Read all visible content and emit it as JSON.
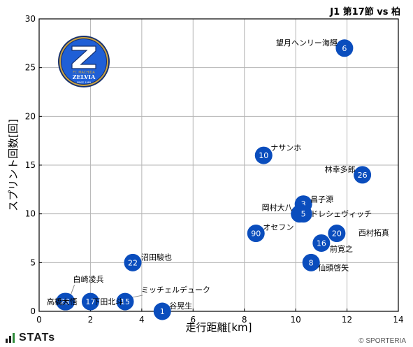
{
  "header": {
    "title": "J1 第17節 vs 柏"
  },
  "footer": {
    "brand": "STATs",
    "credit": "© SPORTERIA"
  },
  "logo": {
    "top_text": "FC MACHIDA",
    "name": "ZELVIA",
    "since": "SINCE 1989"
  },
  "colors": {
    "point": "#0a4dbd",
    "grid": "#b5b5b5",
    "logo_navy": "#16306e",
    "logo_blue": "#1f5fd6",
    "logo_gold": "#c9a243"
  },
  "chart_data": {
    "type": "scatter",
    "xlabel": "走行距離[km]",
    "ylabel": "スプリント回数[回]",
    "xlim": [
      0,
      14
    ],
    "ylim": [
      0,
      30
    ],
    "xticks": [
      0,
      2,
      4,
      6,
      8,
      10,
      12,
      14
    ],
    "yticks": [
      0,
      5,
      10,
      15,
      20,
      25,
      30
    ],
    "grid": true,
    "points": [
      {
        "num": "6",
        "name": "望月ヘンリー海輝",
        "x": 11.9,
        "y": 27
      },
      {
        "num": "10",
        "name": "ナサンホ",
        "x": 8.75,
        "y": 16
      },
      {
        "num": "26",
        "name": "林幸多郎",
        "x": 12.6,
        "y": 14
      },
      {
        "num": "3",
        "name": "昌子源",
        "x": 10.3,
        "y": 11
      },
      {
        "num": "50",
        "name": "岡村大八",
        "x": 10.15,
        "y": 10
      },
      {
        "num": "5",
        "name": "ドレシェヴィッチ",
        "x": 10.3,
        "y": 10
      },
      {
        "num": "90",
        "name": "オセフン",
        "x": 8.45,
        "y": 8
      },
      {
        "num": "20",
        "name": "西村拓真",
        "x": 11.6,
        "y": 8
      },
      {
        "num": "16",
        "name": "前寛之",
        "x": 11.0,
        "y": 7
      },
      {
        "num": "8",
        "name": "仙頭啓矢",
        "x": 10.6,
        "y": 5
      },
      {
        "num": "22",
        "name": "沼田駿也",
        "x": 3.65,
        "y": 5
      },
      {
        "num": "13",
        "name": "白崎凌兵",
        "x": 1.05,
        "y": 1
      },
      {
        "num": "23",
        "name": "高橋大悟",
        "x": 1.0,
        "y": 1
      },
      {
        "num": "17",
        "name": "下田北斗",
        "x": 2.0,
        "y": 1
      },
      {
        "num": "15",
        "name": "ミッチェルデューク",
        "x": 3.35,
        "y": 1
      },
      {
        "num": "1",
        "name": "谷晃生",
        "x": 4.8,
        "y": 0
      }
    ]
  }
}
